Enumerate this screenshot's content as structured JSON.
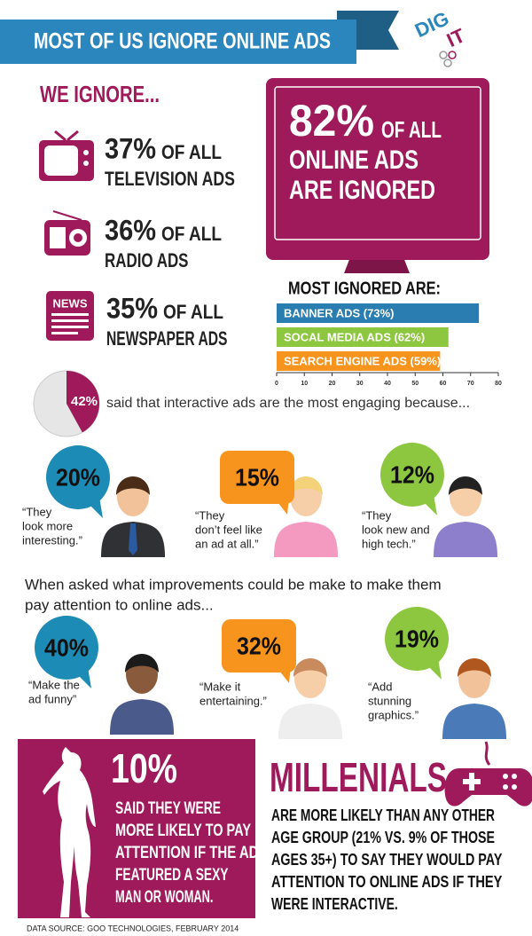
{
  "header": {
    "title": "MOST OF US IGNORE ONLINE ADS",
    "logo": [
      "DIG",
      "IT"
    ]
  },
  "ignore": {
    "heading": "WE IGNORE...",
    "items": [
      {
        "percent": "37%",
        "line1": "OF ALL",
        "line2": "TELEVISION ADS"
      },
      {
        "percent": "36%",
        "line1": "OF ALL",
        "line2": "RADIO ADS"
      },
      {
        "percent": "35%",
        "line1": "OF ALL",
        "line2": "NEWSPAPER ADS"
      }
    ],
    "news_icon": "NEWS"
  },
  "monitor": {
    "percent": "82%",
    "line1": "OF ALL",
    "line2": "ONLINE ADS",
    "line3": "ARE IGNORED"
  },
  "bar_chart": {
    "type": "bar",
    "title": "MOST IGNORED ARE:",
    "values": [
      73,
      62,
      59
    ],
    "value_labels": [
      "BANNER ADS (73%)",
      "SOCAL MEDIA ADS (62%)",
      "SEARCH ENGINE ADS (59%)"
    ],
    "colors": [
      "#2a7db0",
      "#8dc63f",
      "#f7941d"
    ],
    "xlim": [
      0,
      80
    ],
    "xticks": [
      0,
      10,
      20,
      30,
      40,
      50,
      60,
      70,
      80
    ]
  },
  "pie": {
    "value": 42,
    "label": "42%",
    "text": "said that interactive ads are the most engaging because..."
  },
  "reasons": [
    {
      "percent": "20%",
      "quote": [
        "“They",
        "look more",
        "interesting.”"
      ]
    },
    {
      "percent": "15%",
      "quote": [
        "“They",
        "don’t feel like",
        "an ad at all.”"
      ]
    },
    {
      "percent": "12%",
      "quote": [
        "“They",
        "look new and",
        "high tech.”"
      ]
    }
  ],
  "improvements": {
    "question": [
      "When asked what improvements could be make to  make them",
      "pay attention to online ads..."
    ],
    "items": [
      {
        "percent": "40%",
        "quote": [
          "“Make the",
          "ad funny”"
        ]
      },
      {
        "percent": "32%",
        "quote": [
          "“Make it",
          "entertaining.”"
        ]
      },
      {
        "percent": "19%",
        "quote": [
          "“Add",
          "stunning",
          "graphics.”"
        ]
      }
    ]
  },
  "sexy": {
    "percent": "10%",
    "lines": [
      "SAID THEY WERE",
      "MORE LIKELY TO PAY",
      "ATTENTION IF THE AD",
      "FEATURED A SEXY",
      "MAN OR WOMAN."
    ]
  },
  "millenials": {
    "title": "MILLENIALS",
    "lines": [
      "ARE MORE LIKELY THAN ANY OTHER",
      "AGE GROUP (21% VS. 9% OF THOSE",
      "AGES 35+) TO SAY THEY WOULD PAY",
      "ATTENTION TO ONLINE ADS IF THEY",
      "WERE INTERACTIVE."
    ]
  },
  "source": "DATA SOURCE: GOO TECHNOLOGIES, FEBRUARY 2014"
}
